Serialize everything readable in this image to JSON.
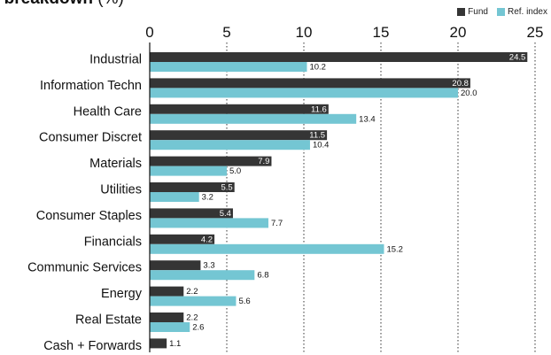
{
  "title": "r breakdown",
  "title_unit": "(%)",
  "colors": {
    "fund": "#353535",
    "ref": "#74c6d3"
  },
  "chart_data": {
    "type": "bar",
    "orientation": "horizontal",
    "title": "r breakdown (%)",
    "categories": [
      "Industrial",
      "Information Techn",
      "Health Care",
      "Consumer Discret",
      "Materials",
      "Utilities",
      "Consumer Staples",
      "Financials",
      "Communic Services",
      "Energy",
      "Real Estate",
      "Cash + Forwards"
    ],
    "series": [
      {
        "name": "Fund",
        "values": [
          24.5,
          20.8,
          11.6,
          11.5,
          7.9,
          5.5,
          5.4,
          4.2,
          3.3,
          2.2,
          2.2,
          1.1
        ],
        "labels": [
          "24.5",
          "20.8",
          "11.6",
          "11.5",
          "7.9",
          "5.5",
          "5.4",
          "4.2",
          "3.3",
          "2.2",
          "2.2",
          "1.1"
        ]
      },
      {
        "name": "Ref. index",
        "values": [
          10.2,
          20.0,
          13.4,
          10.4,
          5.0,
          3.2,
          7.7,
          15.2,
          6.8,
          5.6,
          2.6,
          null
        ],
        "labels": [
          "10.2",
          "20.0",
          "13.4",
          "10.4",
          "5.0",
          "3.2",
          "7.7",
          "15.2",
          "6.8",
          "5.6",
          "2.6",
          null
        ]
      }
    ],
    "xlim": [
      0,
      25
    ],
    "xticks": [
      0,
      5,
      10,
      15,
      20,
      25
    ],
    "xtick_labels": [
      "0",
      "5",
      "10",
      "15",
      "20",
      "25"
    ],
    "grid": "vertical dotted",
    "legend": "top-right"
  }
}
